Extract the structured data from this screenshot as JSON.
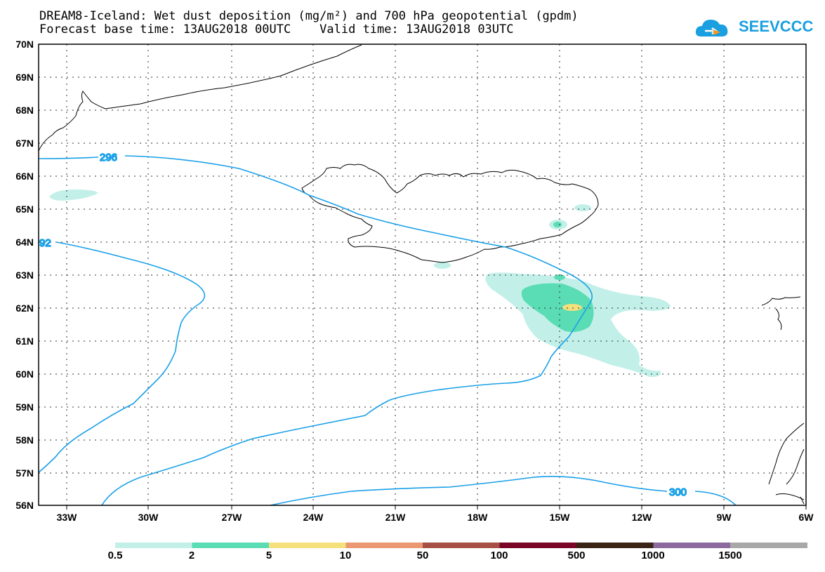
{
  "title": {
    "line1": "DREAM8-Iceland: Wet dust deposition (mg/m²) and 700 hPa geopotential (gpdm)",
    "line2": "Forecast base time: 13AUG2018 00UTC    Valid time: 13AUG2018 03UTC"
  },
  "logo": {
    "text": "SEEVCCC",
    "icon": "cloud-icon",
    "color": "#1a9fe0"
  },
  "axes": {
    "lat_labels": [
      "70N",
      "69N",
      "68N",
      "67N",
      "66N",
      "65N",
      "64N",
      "63N",
      "62N",
      "61N",
      "60N",
      "59N",
      "58N",
      "57N",
      "56N"
    ],
    "lon_labels": [
      "33W",
      "30W",
      "27W",
      "24W",
      "21W",
      "18W",
      "15W",
      "12W",
      "9W",
      "6W"
    ]
  },
  "contours": {
    "color": "#1aa0e8",
    "labels": [
      "296",
      "92",
      "300"
    ]
  },
  "colorbar": {
    "labels": [
      "0.5",
      "2",
      "5",
      "10",
      "50",
      "100",
      "500",
      "1000",
      "1500"
    ],
    "colors": [
      "#c2f0e9",
      "#5adcb4",
      "#f4e07c",
      "#ea9872",
      "#a64f45",
      "#7a0526",
      "#3a2416",
      "#8c6a9e",
      "#a8a8a8"
    ]
  }
}
